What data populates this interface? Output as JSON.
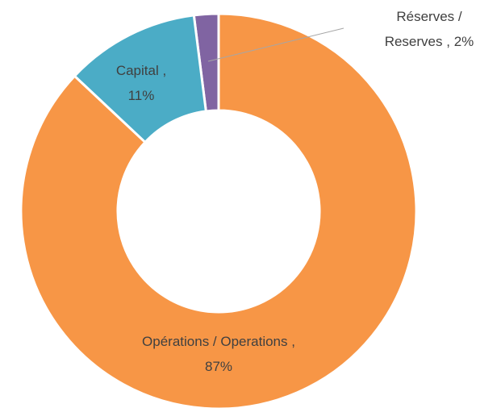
{
  "chart_data": {
    "type": "donut",
    "categories": [
      "Opérations / Operations",
      "Capital",
      "Réserves / Reserves"
    ],
    "values": [
      87,
      11,
      2
    ],
    "value_labels": [
      "87%",
      "11%",
      "2%"
    ],
    "label_separator": " ,",
    "colors": [
      "#f79646",
      "#4bacc6",
      "#8064a2"
    ]
  }
}
